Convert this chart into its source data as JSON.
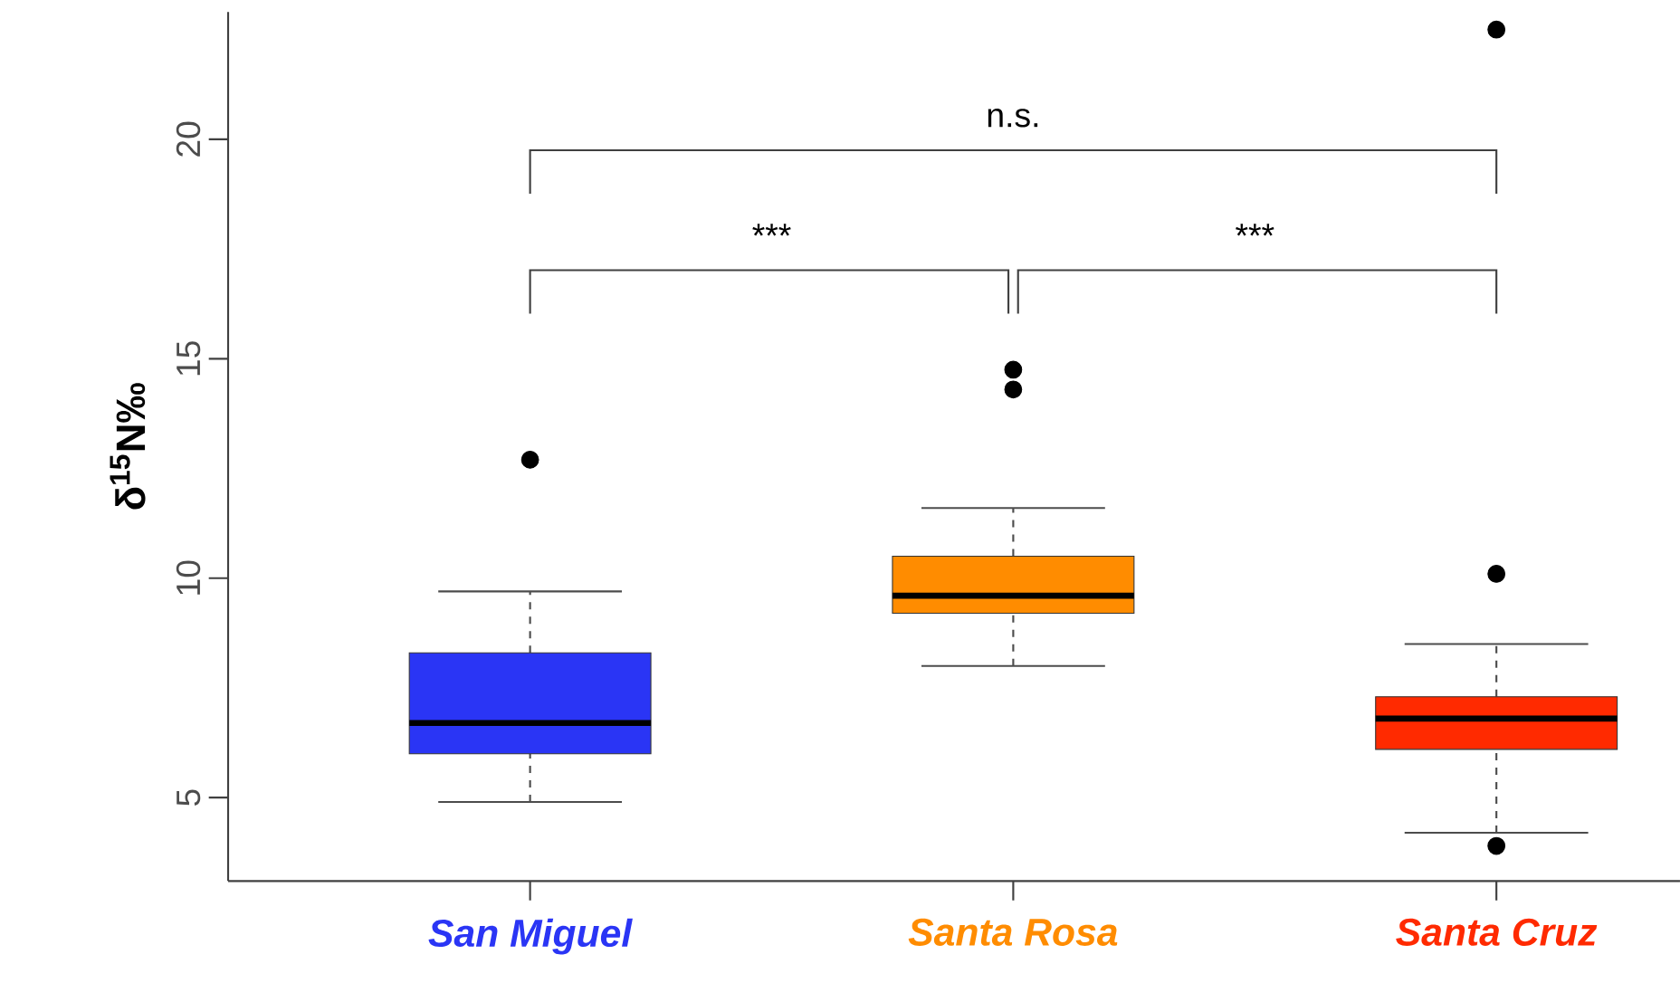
{
  "chart_data": {
    "type": "box",
    "ylabel": "δ$^{15}$N‰",
    "categories": [
      "San Miguel",
      "Santa Rosa",
      "Santa Cruz"
    ],
    "colors": [
      "#2a35f5",
      "#ff8c00",
      "#ff2a00"
    ],
    "boxes": [
      {
        "low": 4.9,
        "q1": 6.0,
        "median": 6.7,
        "q3": 8.3,
        "high": 9.7,
        "outliers": [
          12.7
        ]
      },
      {
        "low": 8.0,
        "q1": 9.2,
        "median": 9.6,
        "q3": 10.5,
        "high": 11.6,
        "outliers": [
          14.3,
          14.75
        ]
      },
      {
        "low": 4.2,
        "q1": 6.1,
        "median": 6.8,
        "q3": 7.3,
        "high": 8.5,
        "outliers": [
          3.9,
          10.1,
          22.5
        ]
      }
    ],
    "ylim": [
      3.1,
      22.9
    ],
    "yticks": [
      5,
      10,
      15,
      20
    ],
    "grid": false,
    "annotations": [
      "n.s.",
      "***",
      "***"
    ]
  }
}
